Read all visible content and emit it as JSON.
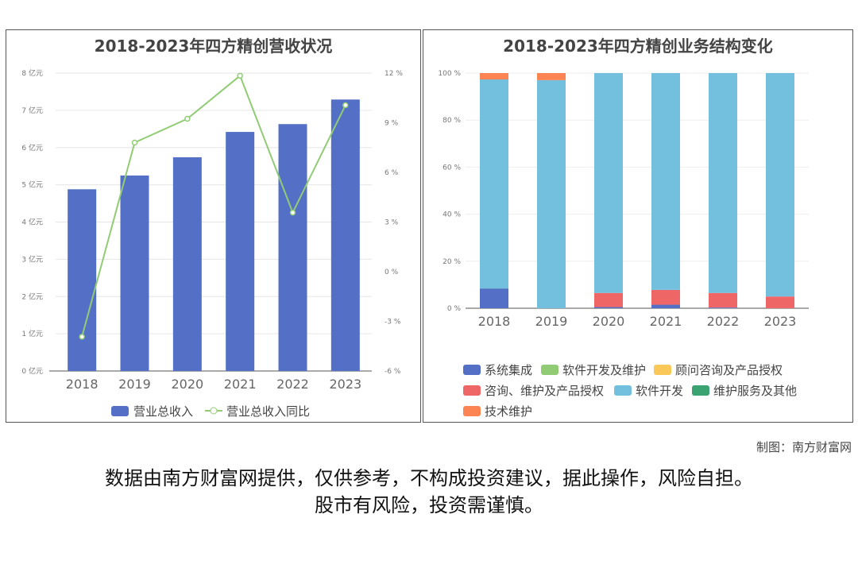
{
  "chart_data": [
    {
      "type": "bar+line",
      "title": "2018-2023年四方精创营收状况",
      "categories": [
        "2018",
        "2019",
        "2020",
        "2021",
        "2022",
        "2023"
      ],
      "series": [
        {
          "name": "营业总收入",
          "type": "bar",
          "axis": "left",
          "unit": "亿元",
          "values": [
            4.88,
            5.25,
            5.74,
            6.42,
            6.63,
            7.29
          ],
          "color": "#5470c6"
        },
        {
          "name": "营业总收入同比",
          "type": "line",
          "axis": "right",
          "unit": "%",
          "values": [
            -3.93,
            7.8,
            9.24,
            11.84,
            3.57,
            10.06
          ],
          "color": "#91cc75"
        }
      ],
      "left_axis": {
        "ylim": [
          0,
          8
        ],
        "ticks": [
          "0 亿元",
          "1 亿元",
          "2 亿元",
          "3 亿元",
          "4 亿元",
          "5 亿元",
          "6 亿元",
          "7 亿元",
          "8 亿元"
        ]
      },
      "right_axis": {
        "ylim": [
          -6,
          12
        ],
        "ticks": [
          "-6 %",
          "-3 %",
          "0 %",
          "3 %",
          "6 %",
          "9 %",
          "12 %"
        ]
      },
      "grid": true,
      "legend": "bottom"
    },
    {
      "type": "bar",
      "stacked": true,
      "title": "2018-2023年四方精创业务结构变化",
      "categories": [
        "2018",
        "2019",
        "2020",
        "2021",
        "2022",
        "2023"
      ],
      "series": [
        {
          "name": "系统集成",
          "color": "#5470c6",
          "values": [
            8.4,
            0,
            0.5,
            1.5,
            0.3,
            0
          ]
        },
        {
          "name": "软件开发及维护",
          "color": "#91cc75",
          "values": [
            0,
            0,
            0,
            0,
            0,
            0
          ]
        },
        {
          "name": "顾问咨询及产品授权",
          "color": "#fac858",
          "values": [
            0,
            0,
            0,
            0,
            0,
            0
          ]
        },
        {
          "name": "咨询、维护及产品授权",
          "color": "#ee6666",
          "values": [
            0,
            0,
            6,
            6.3,
            6.2,
            5
          ]
        },
        {
          "name": "软件开发",
          "color": "#73c0de",
          "values": [
            88.9,
            97,
            93.5,
            92.2,
            93.5,
            95
          ]
        },
        {
          "name": "维护服务及其他",
          "color": "#3ba272",
          "values": [
            0,
            0,
            0,
            0,
            0,
            0
          ]
        },
        {
          "name": "技术维护",
          "color": "#fc8452",
          "values": [
            2.7,
            3,
            0,
            0,
            0,
            0
          ]
        }
      ],
      "ylim": [
        0,
        100
      ],
      "ticks": [
        "0 %",
        "20 %",
        "40 %",
        "60 %",
        "80 %",
        "100 %"
      ],
      "grid": true,
      "legend": "bottom"
    }
  ],
  "credit": "制图：南方财富网",
  "disclaimer": [
    "数据由南方财富网提供，仅供参考，不构成投资建议，据此操作，风险自担。",
    "股市有风险，投资需谨慎。"
  ]
}
